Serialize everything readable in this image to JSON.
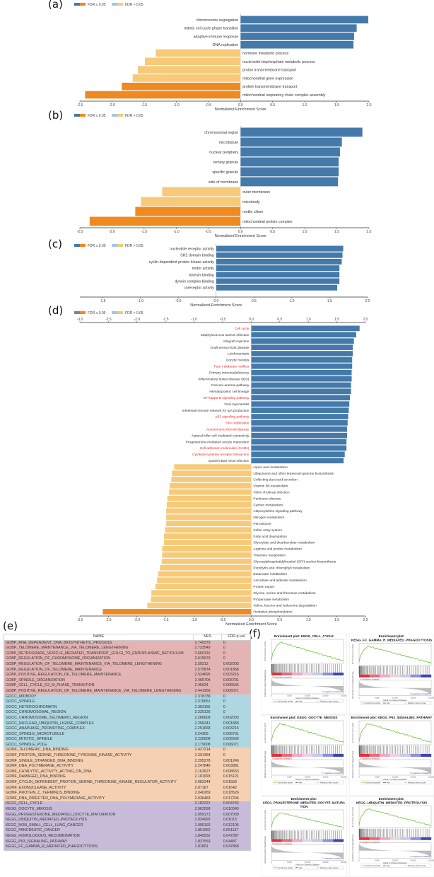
{
  "panel_labels": {
    "a": "(a)",
    "b": "(b)",
    "c": "(c)",
    "d": "(d)",
    "e": "(e)",
    "f": "(f)"
  },
  "colors": {
    "pos_sig": "#4479aa",
    "neg_sig": "#ee8a1f",
    "pos_nonsig": "#a9c4e0",
    "neg_nonsig": "#f6ca79",
    "legend_d_sig": "#7f8387",
    "highlight_text": "#e8261f"
  },
  "legend": {
    "sig": "FDR ≤ 0.05",
    "nonsig": "FDR > 0.05"
  },
  "chart_data": [
    {
      "id": "a",
      "type": "bar",
      "orientation": "horizontal",
      "xlabel": "Normalized Enrichment Score",
      "xlim": [
        -2.5,
        2.0
      ],
      "ticks": [
        "-2.5",
        "-2.0",
        "-1.5",
        "-1.0",
        "-0.5",
        "0.0",
        "0.5",
        "1.0",
        "1.5",
        "2.0"
      ],
      "categories": [
        "chromosome segregation",
        "mitotic cell cycle phase transition",
        "adaptive immune response",
        "DNA replication",
        "hormone metabolic process",
        "nucleoside bisphosphate metabolic process",
        "proton transmembrane transport",
        "mitochondrial gene expression",
        "protein transmembrane transport",
        "mitochondrial respiratory chain complex assembly"
      ],
      "values": [
        1.99,
        1.81,
        1.77,
        1.76,
        -1.32,
        -1.49,
        -1.6,
        -1.68,
        -1.85,
        -2.42
      ],
      "fdr_significant": [
        true,
        true,
        true,
        true,
        false,
        false,
        false,
        false,
        true,
        true
      ]
    },
    {
      "id": "b",
      "type": "bar",
      "orientation": "horizontal",
      "xlabel": "Normalized Enrichment Score",
      "xlim": [
        -2.5,
        2.0
      ],
      "ticks": [
        "-2.5",
        "-2.0",
        "-1.5",
        "-1.0",
        "-0.5",
        "0.0",
        "0.5",
        "1.0",
        "1.5",
        "2.0"
      ],
      "categories": [
        "chromosomal region",
        "microtubule",
        "nuclear periphery",
        "tertiary granule",
        "specific granule",
        "side of membrane",
        "outer membrane",
        "microbody",
        "motile cilium",
        "mitochondrial protein complex"
      ],
      "values": [
        1.9,
        1.58,
        1.55,
        1.53,
        1.53,
        1.52,
        -1.22,
        -1.55,
        -1.64,
        -2.35
      ],
      "fdr_significant": [
        true,
        true,
        true,
        true,
        true,
        true,
        false,
        false,
        true,
        true
      ]
    },
    {
      "id": "c",
      "type": "bar",
      "orientation": "horizontal",
      "xlabel": "Normalized Enrichment Score",
      "xlim": [
        -1.8,
        2.0
      ],
      "ticks": [
        "-1.5",
        "-1.0",
        "-0.5",
        "0.0",
        "0.5",
        "1.0",
        "1.5",
        "2.0"
      ],
      "categories": [
        "nucleotide receptor activity",
        "SH2 domain binding",
        "cyclin-dependent protein kinase activity",
        "motor activity",
        "kinesin binding",
        "dynein complex binding",
        "coreceptor activity"
      ],
      "values": [
        1.68,
        1.67,
        1.66,
        1.63,
        1.63,
        1.63,
        1.6
      ],
      "fdr_significant": [
        true,
        true,
        true,
        true,
        true,
        true,
        true
      ]
    },
    {
      "id": "d",
      "type": "bar",
      "orientation": "horizontal",
      "xlabel": "Normalized Enrichment Score",
      "xlim": [
        -3.0,
        2.0
      ],
      "ticks": [
        "-3.0",
        "-2.5",
        "-2.0",
        "-1.5",
        "-1.0",
        "-0.5",
        "0.0",
        "0.5",
        "1.0",
        "1.5",
        "2.0"
      ],
      "categories": [
        "Cell cycle",
        "Staphylococcus aureus infection",
        "Allograft rejection",
        "Graft-versus-host disease",
        "Leishmaniasis",
        "Oocyte meiosis",
        "Type I diabetes mellitus",
        "Primary immunodeficiency",
        "Inflammatory bowel disease (IBD)",
        "Fanconi anemia pathway",
        "Hematopoietic cell lineage",
        "NF-kappa B signaling pathway",
        "Viral myocarditis",
        "Intestinal immune network for IgA production",
        "p53 signaling pathway",
        "DNA replication",
        "Autoimmune thyroid disease",
        "Natural killer cell mediated cytotoxicity",
        "Progesterone-mediated oocyte maturation",
        "Cell adhesion molecules (CAMs)",
        "Cytokine-cytokine receptor interaction",
        "Epstein-Barr virus infection",
        "Lipoic acid metabolism",
        "Ubiquinone and other terpenoid-quinone biosynthesis",
        "Collecting duct acid secretion",
        "Vitamin B6 metabolism",
        "Vibrio cholerae infection",
        "Parkinson disease",
        "Carbon metabolism",
        "Adipocytokine signaling pathway",
        "Nitrogen metabolism",
        "Peroxisome",
        "Sulfur relay system",
        "Fatty acid degradation",
        "Glyoxylate and dicarboxylate metabolism",
        "Arginine and proline metabolism",
        "Thiamine metabolism",
        "Glycosylphosphatidylinositol (GPI)-anchor biosynthesis",
        "Porphyrin and chlorophyll metabolism",
        "Butanoate metabolism",
        "Ascorbate and aldarate metabolism",
        "Protein export",
        "Glycine, serine and threonine metabolism",
        "Propanoate metabolism",
        "Valine, leucine and isoleucine degradation",
        "Oxidative phosphorylation"
      ],
      "values": [
        1.9,
        1.84,
        1.8,
        1.78,
        1.78,
        1.77,
        1.77,
        1.76,
        1.76,
        1.75,
        1.75,
        1.73,
        1.72,
        1.71,
        1.7,
        1.69,
        1.68,
        1.68,
        1.67,
        1.67,
        1.64,
        1.62,
        -1.35,
        -1.39,
        -1.4,
        -1.43,
        -1.44,
        -1.47,
        -1.48,
        -1.49,
        -1.49,
        -1.49,
        -1.51,
        -1.53,
        -1.53,
        -1.56,
        -1.56,
        -1.57,
        -1.6,
        -1.63,
        -1.65,
        -1.68,
        -1.75,
        -1.76,
        -1.82,
        -2.6
      ],
      "fdr_significant": [
        true,
        true,
        true,
        true,
        true,
        true,
        true,
        true,
        true,
        true,
        true,
        true,
        true,
        true,
        true,
        true,
        true,
        true,
        true,
        true,
        true,
        true,
        false,
        false,
        false,
        false,
        false,
        false,
        false,
        false,
        false,
        false,
        false,
        false,
        false,
        false,
        false,
        false,
        false,
        false,
        false,
        false,
        false,
        false,
        false,
        true
      ],
      "highlighted": [
        "Cell cycle",
        "Type I diabetes mellitus",
        "NF-kappa B signaling pathway",
        "p53 signaling pathway",
        "DNA replication",
        "Autoimmune thyroid disease",
        "Cell adhesion molecules (CAMs)",
        "Cytokine-cytokine receptor interaction"
      ]
    },
    {
      "id": "e",
      "type": "table",
      "columns": [
        "NAME",
        "NES",
        "FDR q-val"
      ],
      "rows": [
        [
          "GOBP_RNA_DEPENDENT_DNA_BIOSYNTHETIC_PROCESS",
          "2.749379",
          "0",
          "GOBP"
        ],
        [
          "GOBP_TELOMERE_MAINTENANCE_VIA_TELOMERE_LENGTHENING",
          "2.733549",
          "0",
          "GOBP"
        ],
        [
          "GOBP_RETROGRADE_VESICLE_MEDIATED_TRANSPORT_GOLGI_TO_ENDOPLASMIC_RETICULUM",
          "2.669131",
          "0",
          "GOBP"
        ],
        [
          "GOBP_REGULATION_OF_CHROMOSOME_ORGANIZATION",
          "2.615679",
          "0",
          "GOBP"
        ],
        [
          "GOBP_REGULATION_OF_TELOMERE_MAINTENANCE_VIA_TELOMERE_LENGTHENING",
          "2.59212",
          "0.002003",
          "GOBP"
        ],
        [
          "GOBP_REGULATION_OF_TELOMERE_MAINTENANCE",
          "2.575874",
          "0.001868",
          "GOBP"
        ],
        [
          "GOBP_POSITIVE_REGULATION_OF_TELOMERE_MAINTENANCE",
          "2.524695",
          "0.003216",
          "GOBP"
        ],
        [
          "GOBP_SPINDLE_ORGANIZATION",
          "2.465704",
          "0.006701",
          "GOBP"
        ],
        [
          "GOBP_CELL_CYCLE_G2_M_PHASE_TRANSITION",
          "2.45024",
          "0.006566",
          "GOBP"
        ],
        [
          "GOBP_POSITIVE_REGULATION_OF_TELOMERE_MAINTENANCE_VIA_TELOMERE_LENGTHENING",
          "2.441956",
          "0.006071",
          "GOBP"
        ],
        [
          "GOCC_MIDBODY",
          "2.378738",
          "0",
          "GOCC"
        ],
        [
          "GOCC_SPINDLE",
          "2.376651",
          "0",
          "GOCC"
        ],
        [
          "GOCC_HETEROCHROMATIN",
          "2.363155",
          "0",
          "GOCC"
        ],
        [
          "GOCC_CHROMOSOMAL_REGION",
          "2.325126",
          "0",
          "GOCC"
        ],
        [
          "GOCC_CHROMOSOME_TELOMERIC_REGION",
          "2.266609",
          "0.002003",
          "GOCC"
        ],
        [
          "GOCC_NUCLEAR_UBIQUITIN_LIGASE_COMPLEX",
          "2.256241",
          "0.001868",
          "GOCC"
        ],
        [
          "GOCC_ANAPHASE_PROMOTING_COMPLEX",
          "2.251668",
          "0.003216",
          "GOCC"
        ],
        [
          "GOCC_SPINDLE_MICROTUBULE",
          "2.24303",
          "0.006701",
          "GOCC"
        ],
        [
          "GOCC_MITOTIC_SPINDLE",
          "2.235608",
          "0.006566",
          "GOCC"
        ],
        [
          "GOCC_SPINDLE_POLE",
          "2.179008",
          "0.006071",
          "GOCC"
        ],
        [
          "GOMF_TELOMERIC_DNA_BINDING",
          "2.427214",
          "0",
          "GOMF"
        ],
        [
          "GOMF_PROTEIN_SERINE_THREONINE_TYROSINE_KINASE_ACTIVITY",
          "2.391354",
          "0",
          "GOMF"
        ],
        [
          "GOMF_SINGLE_STRANDED_DNA_BINDING",
          "2.295278",
          "0.001246",
          "GOMF"
        ],
        [
          "GOMF_DNA_POLYMERASE_ACTIVITY",
          "2.247846",
          "0.003981",
          "GOMF"
        ],
        [
          "GOMF_CATALYTIC_ACTIVITY_ACTING_ON_DNA",
          "2.163627",
          "0.008653",
          "GOMF"
        ],
        [
          "GOMF_DAMAGED_DNA_BINDING",
          "2.101993",
          "0.015121",
          "GOMF"
        ],
        [
          "GOMF_CYCLIN_DEPENDENT_PROTEIN_SERINE_THREONINE_KINASE_REGULATOR_ACTIVITY",
          "2.082244",
          "0.01583",
          "GOMF"
        ],
        [
          "GOMF_EXONUCLEASE_ACTIVITY",
          "2.07167",
          "0.01642",
          "GOMF"
        ],
        [
          "GOMF_PROTEIN_C_TERMINUS_BINDING",
          "2.040269",
          "0.018526",
          "GOMF"
        ],
        [
          "GOMF_DNA_DIRECTED_DNA_POLYMERASE_ACTIVITY",
          "2.036463",
          "0.017204",
          "GOMF"
        ],
        [
          "KEGG_CELL_CYCLE",
          "2.182221",
          "0.004742",
          "KEGG"
        ],
        [
          "KEGG_OOCYTE_MEIOSIS",
          "2.062599",
          "0.010345",
          "KEGG"
        ],
        [
          "KEGG_PROGESTERONE_MEDIATED_OOCYTE_MATURATION",
          "2.059171",
          "0.007939",
          "KEGG"
        ],
        [
          "KEGG_UBIQUITIN_MEDIATED_PROTEOLYSIS",
          "2.034993",
          "0.01013",
          "KEGG"
        ],
        [
          "KEGG_NON_SMALL_CELL_LUNG_CANCER",
          "1.995192",
          "0.012105",
          "KEGG"
        ],
        [
          "KEGG_PANCREATIC_CANCER",
          "1.851952",
          "0.051137",
          "KEGG"
        ],
        [
          "KEGG_HOMOLOGOUS_RECOMBINATION",
          "1.845532",
          "0.047287",
          "KEGG"
        ],
        [
          "KEGG_P53_SIGNALING_PATHWAY",
          "1.837553",
          "0.04487",
          "KEGG"
        ],
        [
          "KEGG_FC_GAMMA_R_MEDIATED_PHAGOCYTOSIS",
          "1.81801",
          "0.047868",
          "KEGG"
        ]
      ]
    }
  ],
  "gsea": {
    "ylabel_es": "Enrichment score (ES)",
    "ylabel_metric": "Ranked list metric (Signal2Noise)",
    "xlabel": "Rank in Ordered Dataset",
    "xticks": [
      "0",
      "5,000",
      "10,000",
      "15,000",
      "20,000"
    ],
    "pos_label": "'h' (positively correlated)",
    "neg_label": "'l' (negatively correlated)",
    "legend": [
      "Enrichment profile",
      "Hits",
      "Ranking metric scores"
    ],
    "colors": {
      "profile": "#6ac43a"
    },
    "plots": [
      {
        "title": [
          "Enrichment plot: KEGG_CELL_CYCLE"
        ]
      },
      {
        "title": [
          "Enrichment plot:",
          "KEGG_FC_GAMMA_R_MEDIATED_PHAGOCYTOSIS"
        ]
      },
      {
        "title": [
          "Enrichment plot: KEGG_OOCYTE_MEIOSIS"
        ]
      },
      {
        "title": [
          "Enrichment plot: KEGG_P53_SIGNALING_PATHWAY"
        ]
      },
      {
        "title": [
          "Enrichment plot:",
          "KEGG_PROGESTERONE_MEDIATED_OOCYTE_MATURA",
          "TION"
        ]
      },
      {
        "title": [
          "Enrichment plot:",
          "KEGG_UBIQUITIN_MEDIATED_PROTEOLYSIS"
        ]
      }
    ]
  }
}
